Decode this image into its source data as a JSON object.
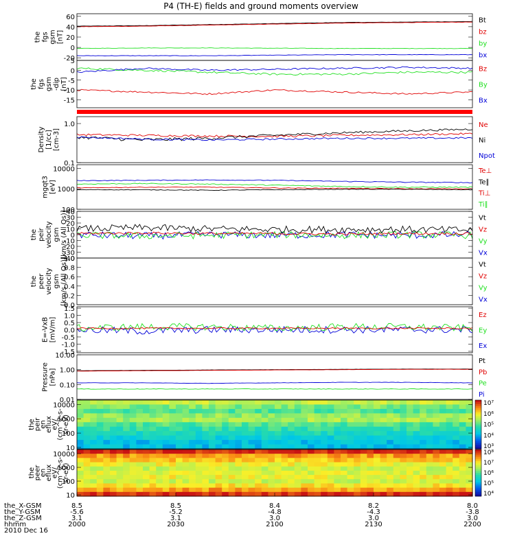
{
  "title": "P4 (TH-E) fields and ground moments overview",
  "date_label": "2010 Dec 16",
  "colors": {
    "black": "#000000",
    "red": "#e00000",
    "green": "#20e020",
    "blue": "#0000d8"
  },
  "time_axis": {
    "rows": [
      {
        "label": "the_X-GSM",
        "values": [
          "8.5",
          "8.5",
          "8.4",
          "8.2",
          "8.0"
        ]
      },
      {
        "label": "the_Y-GSM",
        "values": [
          "-5.6",
          "-5.2",
          "-4.8",
          "-4.3",
          "-3.8"
        ]
      },
      {
        "label": "the_Z-GSM",
        "values": [
          "3.1",
          "3.1",
          "3.0",
          "3.0",
          "3.0"
        ]
      },
      {
        "label": "hhmm",
        "values": [
          "2000",
          "2030",
          "2100",
          "2130",
          "2200"
        ]
      }
    ]
  },
  "chart_data": [
    {
      "type": "line",
      "ylabel": [
        "the",
        "fgs",
        "gsm",
        "[nT]"
      ],
      "ylim": [
        -25,
        65
      ],
      "scale": "linear",
      "ticks": [
        {
          "v": 60,
          "label": "60"
        },
        {
          "v": 40,
          "label": "40"
        },
        {
          "v": 20,
          "label": "20"
        },
        {
          "v": 0,
          "label": "0"
        },
        {
          "v": -20,
          "label": "-20"
        }
      ],
      "legend": [
        {
          "name": "Bt",
          "color": "#000000"
        },
        {
          "name": "bz",
          "color": "#e00000"
        },
        {
          "name": "by",
          "color": "#20e020"
        },
        {
          "name": "bx",
          "color": "#0000d8"
        }
      ],
      "series": [
        {
          "name": "Bt",
          "color": "#000000",
          "values": [
            41,
            42,
            44,
            46,
            48,
            49,
            50
          ],
          "noise": 0.3
        },
        {
          "name": "bz",
          "color": "#e00000",
          "values": [
            40,
            41,
            43,
            45,
            47,
            48,
            49
          ],
          "noise": 0.3
        },
        {
          "name": "by",
          "color": "#20e020",
          "values": [
            -2,
            -1,
            -1,
            -1.5,
            -2,
            -2,
            -2
          ],
          "noise": 0.4
        },
        {
          "name": "bx",
          "color": "#0000d8",
          "values": [
            -16,
            -16,
            -16,
            -15,
            -14,
            -14,
            -14
          ],
          "noise": 0.4
        }
      ]
    },
    {
      "type": "line",
      "ylabel": [
        "the",
        "fgs",
        "gsm",
        "-dip",
        "[nT]"
      ],
      "ylim": [
        -19,
        5
      ],
      "scale": "linear",
      "ticks": [
        {
          "v": 5,
          "label": "5"
        },
        {
          "v": 0,
          "label": "0"
        },
        {
          "v": -5,
          "label": "-5"
        },
        {
          "v": -10,
          "label": "-10"
        },
        {
          "v": -15,
          "label": "-15"
        }
      ],
      "legend": [
        {
          "name": "Bz",
          "color": "#e00000"
        },
        {
          "name": "By",
          "color": "#20e020"
        },
        {
          "name": "Bx",
          "color": "#0000d8"
        }
      ],
      "series": [
        {
          "name": "Bz",
          "color": "#e00000",
          "values": [
            -10,
            -11,
            -12,
            -10,
            -11,
            -12,
            -11
          ],
          "noise": 0.4
        },
        {
          "name": "By",
          "color": "#20e020",
          "values": [
            1,
            0,
            -1,
            -2,
            -2,
            -1,
            -1
          ],
          "noise": 0.5
        },
        {
          "name": "Bx",
          "color": "#0000d8",
          "values": [
            -1,
            1,
            0,
            0.5,
            1,
            1.5,
            1
          ],
          "noise": 0.4
        }
      ]
    },
    {
      "type": "line",
      "ylabel": [
        "Density",
        "[1/cc]",
        "[cm-3]"
      ],
      "ylim": [
        0.1,
        1.5
      ],
      "scale": "log",
      "ticks": [
        {
          "v": 1.0,
          "label": "1.0"
        },
        {
          "v": 0.1,
          "label": "0.1"
        }
      ],
      "legend": [
        {
          "name": "Ne",
          "color": "#e00000"
        },
        {
          "name": "Ni",
          "color": "#000000"
        },
        {
          "name": "Npot",
          "color": "#0000d8"
        }
      ],
      "series": [
        {
          "name": "Ne",
          "color": "#e00000",
          "values": [
            0.52,
            0.5,
            0.48,
            0.47,
            0.5,
            0.52,
            0.55
          ],
          "noise": 0.03
        },
        {
          "name": "Ni",
          "color": "#000000",
          "values": [
            0.45,
            0.38,
            0.42,
            0.5,
            0.58,
            0.65,
            0.72
          ],
          "noise": 0.04
        },
        {
          "name": "Npot",
          "color": "#0000d8",
          "values": [
            0.45,
            0.4,
            0.38,
            0.4,
            0.42,
            0.42,
            0.43
          ],
          "noise": 0.02
        }
      ]
    },
    {
      "type": "line",
      "ylabel": [
        "mgqt3",
        "[eV]"
      ],
      "ylim": [
        100,
        15000
      ],
      "scale": "log",
      "ticks": [
        {
          "v": 10000,
          "label": "10000"
        },
        {
          "v": 1000,
          "label": "1000"
        },
        {
          "v": 100,
          "label": "100"
        }
      ],
      "legend": [
        {
          "name": "Te⊥",
          "color": "#e00000"
        },
        {
          "name": "Te∥",
          "color": "#000000"
        },
        {
          "name": "Ti⊥",
          "color": "#e00000"
        },
        {
          "name": "Ti∥",
          "color": "#20e020"
        }
      ],
      "series": [
        {
          "name": "Ti∥",
          "color": "#0000d8",
          "values": [
            2500,
            2600,
            2700,
            2600,
            2300,
            2100,
            2000
          ],
          "noise": 100
        },
        {
          "name": "Ti∥g",
          "color": "#20e020",
          "values": [
            1700,
            1800,
            1700,
            1500,
            1300,
            1200,
            1200
          ],
          "noise": 80
        },
        {
          "name": "Te⊥",
          "color": "#e00000",
          "values": [
            1100,
            1200,
            1200,
            1100,
            1050,
            1000,
            1000
          ],
          "noise": 40
        },
        {
          "name": "Te∥",
          "color": "#000000",
          "values": [
            900,
            900,
            850,
            900,
            950,
            950,
            900
          ],
          "noise": 30
        }
      ]
    },
    {
      "type": "line",
      "ylabel": [
        "the",
        "peir",
        "velocity",
        "gsm",
        "[km/s (All Qs)]"
      ],
      "ylim": [
        -40,
        40
      ],
      "scale": "linear",
      "ticks": [
        {
          "v": 40,
          "label": "40"
        },
        {
          "v": 30,
          "label": "30"
        },
        {
          "v": 20,
          "label": "20"
        },
        {
          "v": 10,
          "label": "10"
        },
        {
          "v": 0,
          "label": "0"
        },
        {
          "v": -10,
          "label": "-10"
        },
        {
          "v": -20,
          "label": "-20"
        },
        {
          "v": -30,
          "label": "-30"
        },
        {
          "v": -40,
          "label": "-40"
        }
      ],
      "legend": [
        {
          "name": "Vt",
          "color": "#000000"
        },
        {
          "name": "Vz",
          "color": "#e00000"
        },
        {
          "name": "Vy",
          "color": "#20e020"
        },
        {
          "name": "Vx",
          "color": "#0000d8"
        }
      ],
      "series": [
        {
          "name": "Vx",
          "color": "#0000d8",
          "values": [
            0,
            -2,
            0,
            -1,
            0,
            -1,
            0
          ],
          "noise": 6
        },
        {
          "name": "Vy",
          "color": "#20e020",
          "values": [
            -1,
            -2,
            -1,
            0,
            -1,
            0,
            -1
          ],
          "noise": 6
        },
        {
          "name": "Vt",
          "color": "#000000",
          "values": [
            10,
            12,
            10,
            9,
            9,
            9,
            8
          ],
          "noise": 6
        },
        {
          "name": "Vz",
          "color": "#e00000",
          "values": [
            2,
            3,
            2,
            2,
            1,
            2,
            2
          ],
          "noise": 2
        }
      ]
    },
    {
      "type": "line",
      "ylabel": [
        "the",
        "peer",
        "velocity",
        "gsm",
        "[km/s (All Qs)]"
      ],
      "ylim": [
        0,
        1
      ],
      "scale": "linear",
      "ticks": [
        {
          "v": 1.0,
          "label": "1.0"
        },
        {
          "v": 0.8,
          "label": "0.8"
        },
        {
          "v": 0.6,
          "label": "0.6"
        },
        {
          "v": 0.4,
          "label": "0.4"
        },
        {
          "v": 0.2,
          "label": "0.2"
        },
        {
          "v": 0.0,
          "label": "0.0"
        }
      ],
      "legend": [
        {
          "name": "Vt",
          "color": "#000000"
        },
        {
          "name": "Vz",
          "color": "#e00000"
        },
        {
          "name": "Vy",
          "color": "#20e020"
        },
        {
          "name": "Vx",
          "color": "#0000d8"
        }
      ],
      "series": []
    },
    {
      "type": "line",
      "ylabel": [
        "E=-VxB",
        "[mV/m]"
      ],
      "ylim": [
        -1.6,
        1.6
      ],
      "scale": "linear",
      "ticks": [
        {
          "v": 1.5,
          "label": "1.5"
        },
        {
          "v": 1.0,
          "label": "1.0"
        },
        {
          "v": 0.5,
          "label": "0.5"
        },
        {
          "v": 0.0,
          "label": "0.0"
        },
        {
          "v": -0.5,
          "label": "-0.5"
        },
        {
          "v": -1.0,
          "label": "-1.0"
        },
        {
          "v": -1.5,
          "label": "-1.5"
        }
      ],
      "legend": [
        {
          "name": "Ez",
          "color": "#e00000"
        },
        {
          "name": "Ey",
          "color": "#20e020"
        },
        {
          "name": "Ex",
          "color": "#0000d8"
        }
      ],
      "series": [
        {
          "name": "Ex",
          "color": "#0000d8",
          "values": [
            0,
            -0.1,
            0,
            0,
            0,
            0,
            0
          ],
          "noise": 0.25
        },
        {
          "name": "Ey",
          "color": "#20e020",
          "values": [
            0.1,
            0.2,
            0.2,
            0.1,
            0.2,
            0.2,
            0.1
          ],
          "noise": 0.25
        },
        {
          "name": "Ez",
          "color": "#e00000",
          "values": [
            0.1,
            0.1,
            0.1,
            0.1,
            0.1,
            0.1,
            0.1
          ],
          "noise": 0.05
        }
      ]
    },
    {
      "type": "line",
      "ylabel": [
        "Pressure",
        "[nPa]"
      ],
      "ylim": [
        0.01,
        10
      ],
      "scale": "log",
      "ticks": [
        {
          "v": 10,
          "label": "10.00"
        },
        {
          "v": 1,
          "label": "1.00"
        },
        {
          "v": 0.1,
          "label": "0.10"
        },
        {
          "v": 0.01,
          "label": "0.01"
        }
      ],
      "legend": [
        {
          "name": "Pt",
          "color": "#000000"
        },
        {
          "name": "Pb",
          "color": "#e00000"
        },
        {
          "name": "Pe",
          "color": "#20e020"
        },
        {
          "name": "Pi",
          "color": "#0000d8"
        }
      ],
      "series": [
        {
          "name": "Pt",
          "color": "#000000",
          "values": [
            0.85,
            0.9,
            0.95,
            1.0,
            1.05,
            1.1,
            1.1
          ],
          "noise": 0.01
        },
        {
          "name": "Pb",
          "color": "#e00000",
          "values": [
            0.8,
            0.85,
            0.9,
            0.95,
            1.0,
            1.05,
            1.05
          ],
          "noise": 0.01
        },
        {
          "name": "Pi",
          "color": "#0000d8",
          "values": [
            0.13,
            0.13,
            0.12,
            0.13,
            0.14,
            0.14,
            0.13
          ],
          "noise": 0.003
        },
        {
          "name": "Pe",
          "color": "#20e020",
          "values": [
            0.05,
            0.05,
            0.05,
            0.05,
            0.05,
            0.05,
            0.05
          ],
          "noise": 0.002
        }
      ]
    },
    {
      "type": "heatmap",
      "ylabel": [
        "the",
        "peir",
        "en",
        "eflux",
        "eV/",
        "(cm^2-s-",
        "sr-eV)"
      ],
      "ylim": [
        8,
        20000
      ],
      "scale": "log",
      "ticks": [
        {
          "v": 10000,
          "label": "10000"
        },
        {
          "v": 1000,
          "label": "1000"
        },
        {
          "v": 100,
          "label": "100"
        },
        {
          "v": 10,
          "label": "10"
        }
      ],
      "colorbar": {
        "min_exp": 3,
        "max_exp": 7,
        "labels": [
          "10⁷",
          "10⁶",
          "10⁵",
          "10⁴",
          "10³"
        ]
      },
      "band_levels": [
        5.6,
        5.2,
        5.0,
        5.3,
        5.4,
        5.0,
        4.8,
        4.6,
        4.4,
        4.2,
        4.2
      ]
    },
    {
      "type": "heatmap",
      "ylabel": [
        "the",
        "peer",
        "en",
        "eflux",
        "eV/",
        "(cm^2-s-",
        "sr-eV)"
      ],
      "ylim": [
        8,
        20000
      ],
      "scale": "log",
      "ticks": [
        {
          "v": 10000,
          "label": "10000"
        },
        {
          "v": 1000,
          "label": "1000"
        },
        {
          "v": 100,
          "label": "100"
        },
        {
          "v": 10,
          "label": "10"
        }
      ],
      "colorbar": {
        "min_exp": 4,
        "max_exp": 8,
        "labels": [
          "10⁸",
          "10⁷",
          "10⁶",
          "10⁵",
          "10⁴"
        ]
      },
      "band_levels": [
        7.9,
        7.3,
        7.1,
        6.8,
        6.6,
        6.7,
        6.8,
        6.6,
        6.9,
        7.3,
        7.9
      ]
    }
  ]
}
